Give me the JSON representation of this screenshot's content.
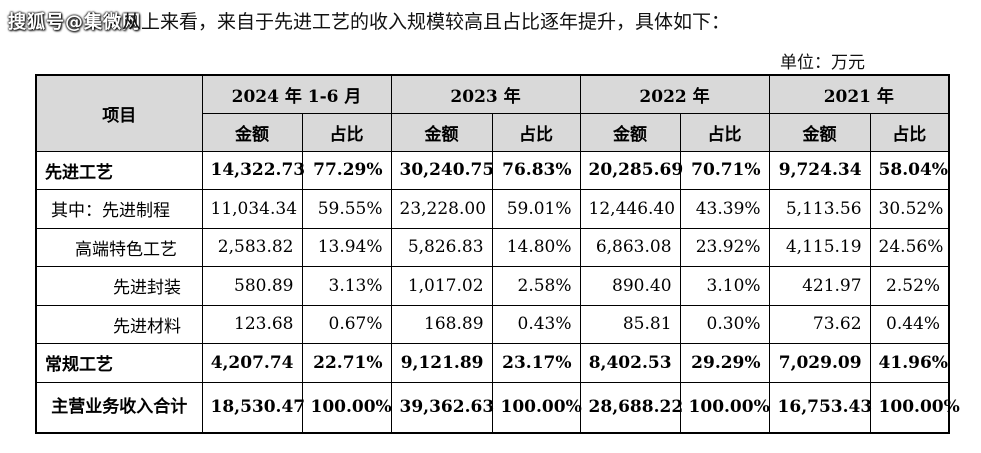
{
  "watermark": "搜狐号@集微网",
  "intro_text": "从上来看，来自于先进工艺的收入规模较高且占比逐年提升，具体如下：",
  "unit": "单位：万元",
  "table": {
    "item_header": "项目",
    "periods": [
      "2024 年 1-6 月",
      "2023 年",
      "2022 年",
      "2021 年"
    ],
    "amount_header": "金额",
    "ratio_header": "占比",
    "rows": [
      {
        "label": "先进工艺",
        "values": [
          "14,322.73",
          "77.29%",
          "30,240.75",
          "76.83%",
          "20,285.69",
          "70.71%",
          "9,724.34",
          "58.04%"
        ]
      },
      {
        "label": "其中：先进制程",
        "values": [
          "11,034.34",
          "59.55%",
          "23,228.00",
          "59.01%",
          "12,446.40",
          "43.39%",
          "5,113.56",
          "30.52%"
        ]
      },
      {
        "label": "高端特色工艺",
        "values": [
          "2,583.82",
          "13.94%",
          "5,826.83",
          "14.80%",
          "6,863.08",
          "23.92%",
          "4,115.19",
          "24.56%"
        ]
      },
      {
        "label": "先进封装",
        "values": [
          "580.89",
          "3.13%",
          "1,017.02",
          "2.58%",
          "890.40",
          "3.10%",
          "421.97",
          "2.52%"
        ]
      },
      {
        "label": "先进材料",
        "values": [
          "123.68",
          "0.67%",
          "168.89",
          "0.43%",
          "85.81",
          "0.30%",
          "73.62",
          "0.44%"
        ]
      },
      {
        "label": "常规工艺",
        "values": [
          "4,207.74",
          "22.71%",
          "9,121.89",
          "23.17%",
          "8,402.53",
          "29.29%",
          "7,029.09",
          "41.96%"
        ]
      },
      {
        "label": "主营业务收入合计",
        "values": [
          "18,530.47",
          "100.00%",
          "39,362.63",
          "100.00%",
          "28,688.22",
          "100.00%",
          "16,753.43",
          "100.00%"
        ]
      }
    ]
  }
}
